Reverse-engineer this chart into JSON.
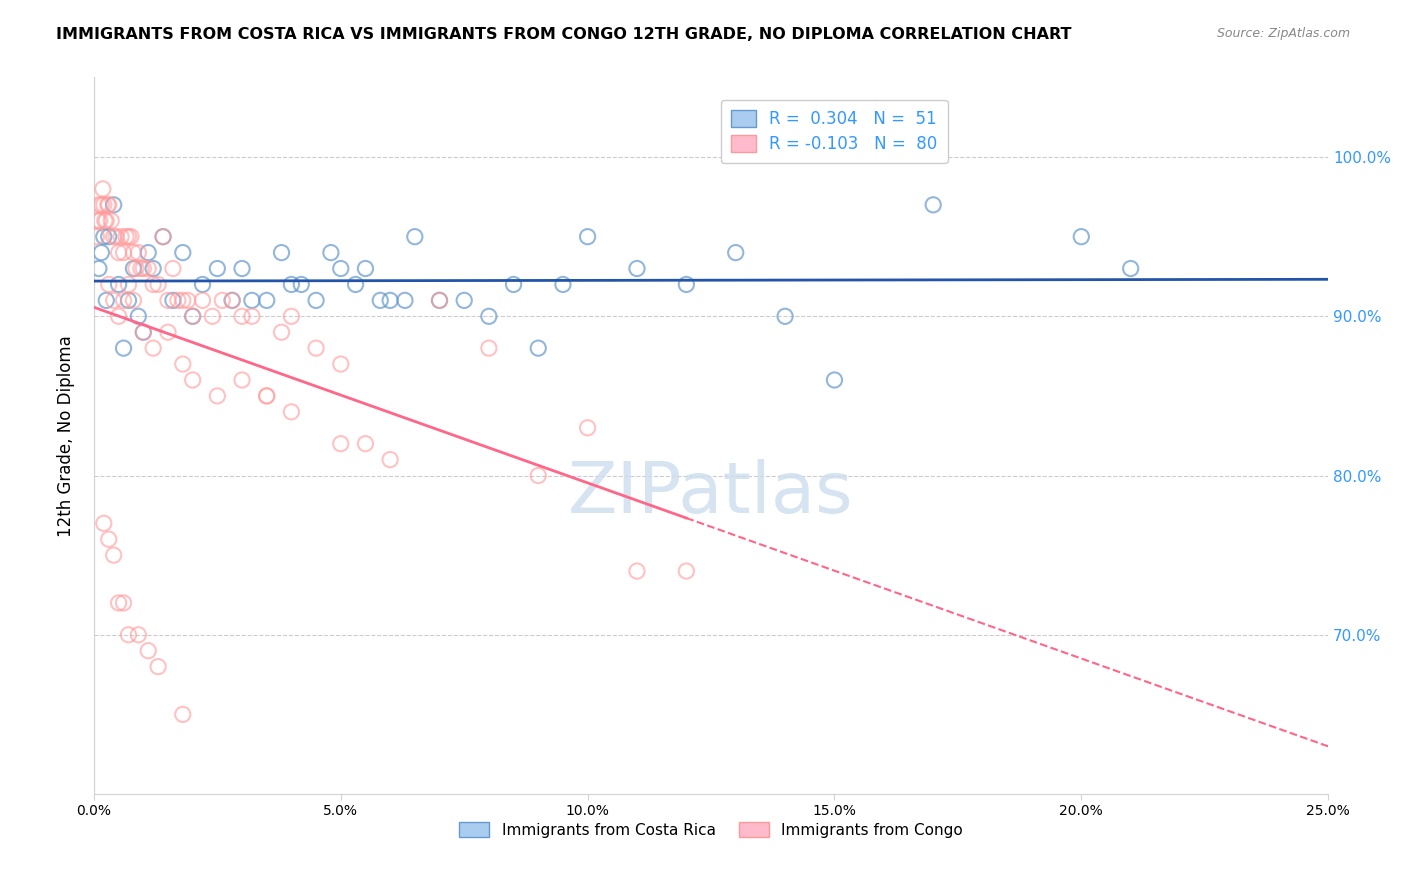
{
  "title": "IMMIGRANTS FROM COSTA RICA VS IMMIGRANTS FROM CONGO 12TH GRADE, NO DIPLOMA CORRELATION CHART",
  "source": "Source: ZipAtlas.com",
  "xlabel": "",
  "ylabel": "12th Grade, No Diploma",
  "legend_blue_r": "R = ",
  "legend_blue_r_val": "0.304",
  "legend_blue_n": "N = ",
  "legend_blue_n_val": "51",
  "legend_pink_r": "R = ",
  "legend_pink_r_val": "-0.103",
  "legend_pink_n": "N = ",
  "legend_pink_n_val": "80",
  "legend_blue_label": "Immigrants from Costa Rica",
  "legend_pink_label": "Immigrants from Congo",
  "xlim": [
    0.0,
    25.0
  ],
  "ylim": [
    60.0,
    105.0
  ],
  "yticks": [
    70.0,
    80.0,
    90.0,
    100.0
  ],
  "xticks": [
    0.0,
    5.0,
    10.0,
    15.0,
    20.0,
    25.0
  ],
  "blue_color": "#6699CC",
  "pink_color": "#FF9999",
  "blue_line_color": "#2255AA",
  "pink_line_color": "#FF6688",
  "watermark": "ZIPatlas",
  "watermark_color": "#CCDDEE",
  "blue_scatter_x": [
    0.1,
    0.15,
    0.2,
    0.25,
    0.3,
    0.4,
    0.5,
    0.6,
    0.7,
    0.8,
    0.9,
    1.0,
    1.1,
    1.2,
    1.4,
    1.6,
    1.8,
    2.0,
    2.2,
    2.5,
    2.8,
    3.0,
    3.2,
    3.5,
    3.8,
    4.0,
    4.2,
    4.5,
    4.8,
    5.0,
    5.3,
    5.5,
    5.8,
    6.0,
    6.3,
    6.5,
    7.0,
    7.5,
    8.0,
    8.5,
    9.0,
    9.5,
    10.0,
    11.0,
    12.0,
    13.0,
    14.0,
    15.0,
    17.0,
    20.0,
    21.0
  ],
  "blue_scatter_y": [
    93,
    94,
    95,
    91,
    95,
    97,
    92,
    88,
    91,
    93,
    90,
    89,
    94,
    93,
    95,
    91,
    94,
    90,
    92,
    93,
    91,
    93,
    91,
    91,
    94,
    92,
    92,
    91,
    94,
    93,
    92,
    93,
    91,
    91,
    91,
    95,
    91,
    91,
    90,
    92,
    88,
    92,
    95,
    93,
    92,
    94,
    90,
    86,
    97,
    95,
    93
  ],
  "pink_scatter_x": [
    0.05,
    0.08,
    0.1,
    0.12,
    0.15,
    0.18,
    0.2,
    0.22,
    0.25,
    0.28,
    0.3,
    0.35,
    0.4,
    0.45,
    0.5,
    0.55,
    0.6,
    0.65,
    0.7,
    0.75,
    0.8,
    0.85,
    0.9,
    0.95,
    1.0,
    1.1,
    1.2,
    1.3,
    1.4,
    1.5,
    1.6,
    1.7,
    1.8,
    1.9,
    2.0,
    2.2,
    2.4,
    2.6,
    2.8,
    3.0,
    3.2,
    3.5,
    3.8,
    4.0,
    4.5,
    5.0,
    5.5,
    6.0,
    7.0,
    8.0,
    9.0,
    10.0,
    11.0,
    12.0,
    0.3,
    0.4,
    0.5,
    0.6,
    0.7,
    0.8,
    1.0,
    1.2,
    1.5,
    1.8,
    2.0,
    2.5,
    3.0,
    3.5,
    4.0,
    5.0,
    0.2,
    0.3,
    0.4,
    0.5,
    0.6,
    0.7,
    0.9,
    1.1,
    1.3,
    1.8
  ],
  "pink_scatter_y": [
    95,
    96,
    97,
    96,
    97,
    98,
    97,
    96,
    96,
    97,
    97,
    96,
    95,
    95,
    94,
    95,
    94,
    95,
    95,
    95,
    94,
    93,
    94,
    93,
    93,
    93,
    92,
    92,
    95,
    91,
    93,
    91,
    91,
    91,
    90,
    91,
    90,
    91,
    91,
    90,
    90,
    85,
    89,
    90,
    88,
    87,
    82,
    81,
    91,
    88,
    80,
    83,
    74,
    74,
    92,
    91,
    90,
    91,
    92,
    91,
    89,
    88,
    89,
    87,
    86,
    85,
    86,
    85,
    84,
    82,
    77,
    76,
    75,
    72,
    72,
    70,
    70,
    69,
    68,
    65
  ]
}
